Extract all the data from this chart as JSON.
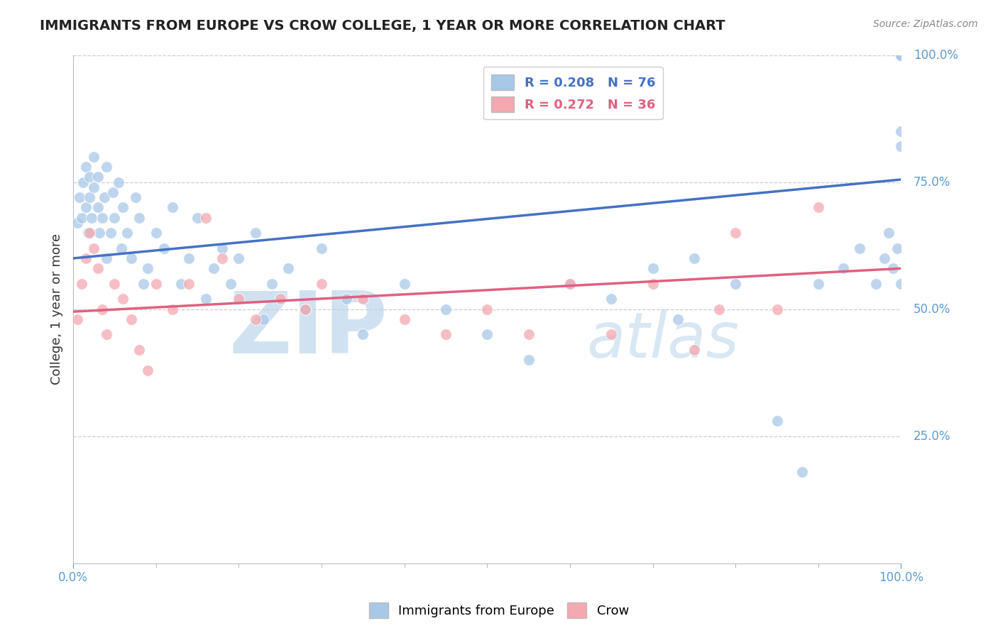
{
  "title": "IMMIGRANTS FROM EUROPE VS CROW COLLEGE, 1 YEAR OR MORE CORRELATION CHART",
  "source_text": "Source: ZipAtlas.com",
  "ylabel": "College, 1 year or more",
  "xlim": [
    0,
    100
  ],
  "ylim": [
    0,
    100
  ],
  "yticklabels": [
    "25.0%",
    "50.0%",
    "75.0%",
    "100.0%"
  ],
  "ytick_vals": [
    25,
    50,
    75,
    100
  ],
  "blue_color": "#a8c8e8",
  "pink_color": "#f4a8b0",
  "blue_line_color": "#4472c4",
  "pink_line_color": "#e06080",
  "legend_r1": "R = 0.208",
  "legend_n1": "N = 76",
  "legend_r2": "R = 0.272",
  "legend_n2": "N = 36",
  "watermark_zip": "ZIP",
  "watermark_atlas": "atlas",
  "blue_intercept": 60.0,
  "blue_slope": 0.155,
  "pink_intercept": 49.5,
  "pink_slope": 0.085,
  "blue_x": [
    0.5,
    0.8,
    1.0,
    1.2,
    1.5,
    1.5,
    1.8,
    2.0,
    2.0,
    2.2,
    2.5,
    2.5,
    3.0,
    3.0,
    3.2,
    3.5,
    3.8,
    4.0,
    4.0,
    4.5,
    4.8,
    5.0,
    5.5,
    5.8,
    6.0,
    6.5,
    7.0,
    7.5,
    8.0,
    8.5,
    9.0,
    10.0,
    11.0,
    12.0,
    13.0,
    14.0,
    15.0,
    16.0,
    17.0,
    18.0,
    19.0,
    20.0,
    22.0,
    23.0,
    24.0,
    26.0,
    28.0,
    30.0,
    33.0,
    35.0,
    40.0,
    45.0,
    50.0,
    55.0,
    60.0,
    65.0,
    70.0,
    73.0,
    75.0,
    80.0,
    85.0,
    88.0,
    90.0,
    93.0,
    95.0,
    97.0,
    98.0,
    98.5,
    99.0,
    99.5,
    100.0,
    100.0,
    100.0,
    100.0,
    100.0,
    100.0
  ],
  "blue_y": [
    67,
    72,
    68,
    75,
    70,
    78,
    65,
    72,
    76,
    68,
    80,
    74,
    70,
    76,
    65,
    68,
    72,
    60,
    78,
    65,
    73,
    68,
    75,
    62,
    70,
    65,
    60,
    72,
    68,
    55,
    58,
    65,
    62,
    70,
    55,
    60,
    68,
    52,
    58,
    62,
    55,
    60,
    65,
    48,
    55,
    58,
    50,
    62,
    52,
    45,
    55,
    50,
    45,
    40,
    55,
    52,
    58,
    48,
    60,
    55,
    28,
    18,
    55,
    58,
    62,
    55,
    60,
    65,
    58,
    62,
    100,
    100,
    100,
    85,
    82,
    55
  ],
  "pink_x": [
    0.5,
    1.0,
    1.5,
    2.0,
    2.5,
    3.0,
    3.5,
    4.0,
    5.0,
    6.0,
    7.0,
    8.0,
    9.0,
    10.0,
    12.0,
    14.0,
    16.0,
    18.0,
    20.0,
    22.0,
    25.0,
    28.0,
    30.0,
    35.0,
    40.0,
    45.0,
    50.0,
    55.0,
    60.0,
    65.0,
    70.0,
    75.0,
    78.0,
    80.0,
    85.0,
    90.0
  ],
  "pink_y": [
    48,
    55,
    60,
    65,
    62,
    58,
    50,
    45,
    55,
    52,
    48,
    42,
    38,
    55,
    50,
    55,
    68,
    60,
    52,
    48,
    52,
    50,
    55,
    52,
    48,
    45,
    50,
    45,
    55,
    45,
    55,
    42,
    50,
    65,
    50,
    70
  ]
}
